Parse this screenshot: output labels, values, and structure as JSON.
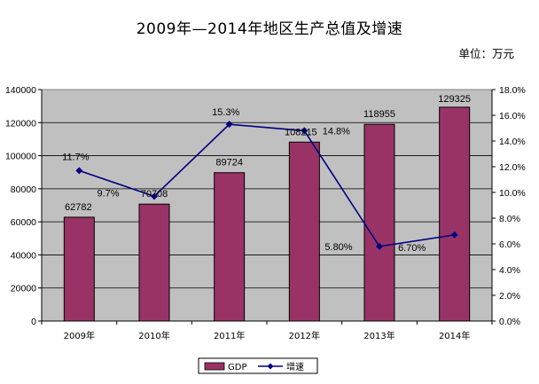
{
  "header": {
    "title": "2009年—2014年地区生产总值及增速",
    "unit": "单位：万元"
  },
  "colors": {
    "plot_bg": "#c0c0c0",
    "bar": "#993366",
    "line": "#000080",
    "legend_border": "#000000"
  },
  "chart_data": {
    "type": "bar",
    "title": "2009年—2014年地区生产总值及增速",
    "categories": [
      "2009年",
      "2010年",
      "2011年",
      "2012年",
      "2013年",
      "2014年"
    ],
    "series": [
      {
        "name": "GDP",
        "type": "bar",
        "axis": "left",
        "values": [
          62782,
          70708,
          89724,
          108215,
          118955,
          129325
        ],
        "labels": [
          "62782",
          "70708",
          "89724",
          "108215",
          "118955",
          "129325"
        ]
      },
      {
        "name": "增速",
        "type": "line",
        "axis": "right",
        "values": [
          11.7,
          9.7,
          15.3,
          14.8,
          5.8,
          6.7
        ],
        "labels": [
          "11.7%",
          "9.7%",
          "15.3%",
          "14.8%",
          "5.80%",
          "6.70%"
        ]
      }
    ],
    "y_left": {
      "min": 0,
      "max": 140000,
      "ticks": [
        "0",
        "20000",
        "40000",
        "60000",
        "80000",
        "100000",
        "120000",
        "140000"
      ]
    },
    "y_right": {
      "min": 0,
      "max": 18,
      "ticks": [
        "0.0%",
        "2.0%",
        "4.0%",
        "6.0%",
        "8.0%",
        "10.0%",
        "12.0%",
        "14.0%",
        "16.0%",
        "18.0%"
      ]
    },
    "grid": true,
    "legend": {
      "position": "bottom",
      "items": [
        "GDP",
        "增速"
      ]
    }
  }
}
